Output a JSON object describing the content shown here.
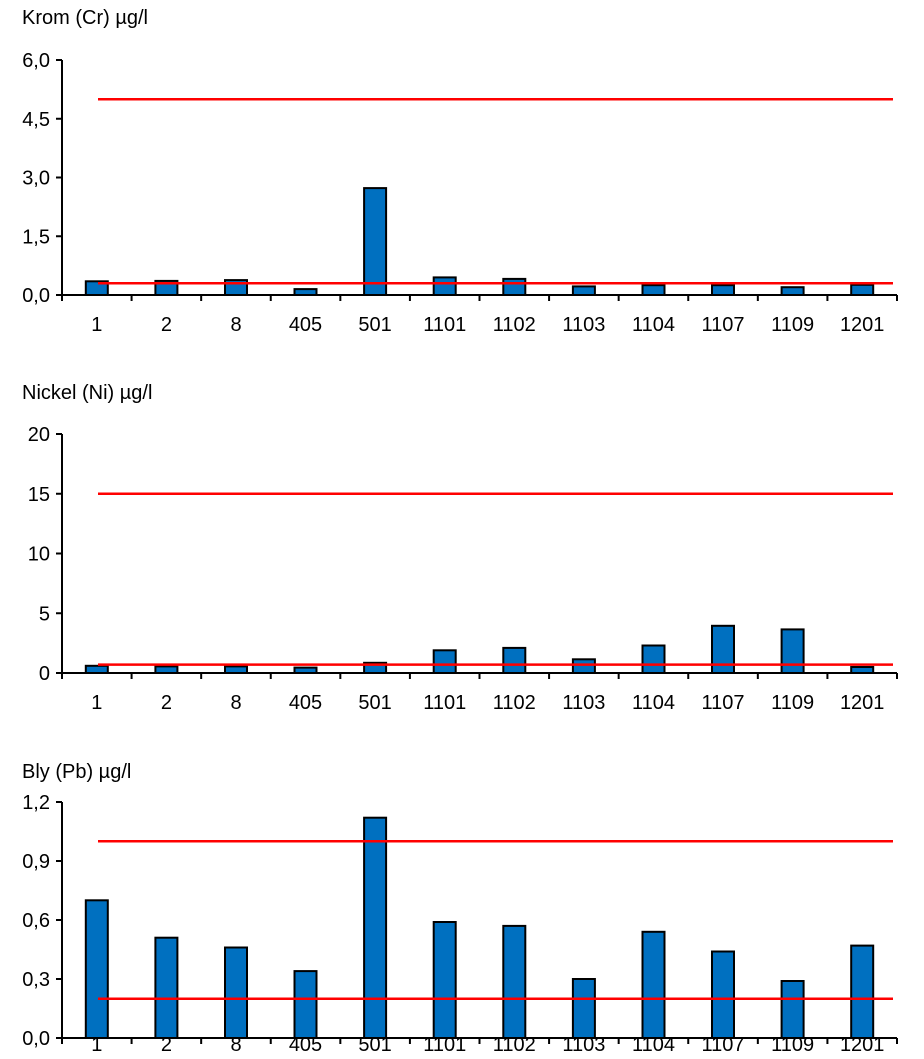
{
  "chart_data": [
    {
      "type": "bar",
      "title": "Krom (Cr) µg/l",
      "categories": [
        "1",
        "2",
        "8",
        "405",
        "501",
        "1101",
        "1102",
        "1103",
        "1104",
        "1107",
        "1109",
        "1201"
      ],
      "values": [
        0.35,
        0.36,
        0.38,
        0.15,
        2.73,
        0.45,
        0.41,
        0.22,
        0.25,
        0.25,
        0.2,
        0.26
      ],
      "ylim": [
        0,
        6
      ],
      "yticks": [
        "0,0",
        "1,5",
        "3,0",
        "4,5",
        "6,0"
      ],
      "reference_lines": [
        5.0,
        0.3
      ],
      "bar_color": "#0070C0",
      "line_color": "#FF0000"
    },
    {
      "type": "bar",
      "title": "Nickel (Ni) µg/l",
      "categories": [
        "1",
        "2",
        "8",
        "405",
        "501",
        "1101",
        "1102",
        "1103",
        "1104",
        "1107",
        "1109",
        "1201"
      ],
      "values": [
        0.6,
        0.55,
        0.55,
        0.45,
        0.85,
        1.9,
        2.1,
        1.15,
        2.3,
        3.95,
        3.65,
        0.5
      ],
      "ylim": [
        0,
        20
      ],
      "yticks": [
        "0",
        "5",
        "10",
        "15",
        "20"
      ],
      "reference_lines": [
        15,
        0.7
      ],
      "bar_color": "#0070C0",
      "line_color": "#FF0000"
    },
    {
      "type": "bar",
      "title": "Bly (Pb) µg/l",
      "categories": [
        "1",
        "2",
        "8",
        "405",
        "501",
        "1101",
        "1102",
        "1103",
        "1104",
        "1107",
        "1109",
        "1201"
      ],
      "values": [
        0.7,
        0.51,
        0.46,
        0.34,
        1.12,
        0.59,
        0.57,
        0.3,
        0.54,
        0.44,
        0.29,
        0.47
      ],
      "ylim": [
        0,
        1.2
      ],
      "yticks": [
        "0,0",
        "0,3",
        "0,6",
        "0,9",
        "1,2"
      ],
      "reference_lines": [
        1.0,
        0.2
      ],
      "bar_color": "#0070C0",
      "line_color": "#FF0000"
    }
  ]
}
